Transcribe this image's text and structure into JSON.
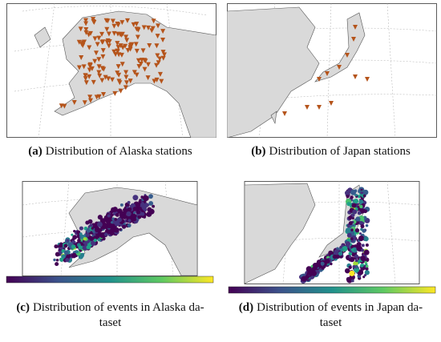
{
  "panels": [
    {
      "label": "(a)",
      "lines": [
        "Distribution of Alaska stations"
      ]
    },
    {
      "label": "(b)",
      "lines": [
        "Distribution of Japan stations"
      ]
    },
    {
      "label": "(c)",
      "lines": [
        "Distribution of events in Alaska da-",
        "taset"
      ]
    },
    {
      "label": "(d)",
      "lines": [
        "Distribution of events in Japan da-",
        "taset"
      ]
    }
  ]
}
